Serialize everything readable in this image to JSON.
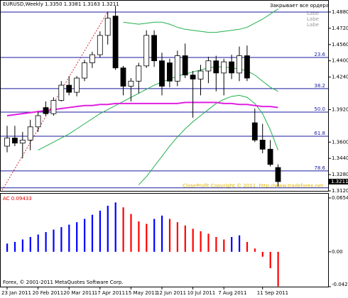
{
  "chart_data": [
    {
      "type": "candlestick",
      "title": "EURUSD,Weekly 1.3350 1.3381 1.3163 1.3211",
      "annotations": [
        "Закрывает все ордера",
        "Labe",
        "Labe",
        "Labe"
      ],
      "copyright": "CloseProfit Copyright © 2011, http://www.tradeforex.net",
      "categories": [
        "23 Jan 2011",
        null,
        null,
        null,
        "20 Feb 2011",
        null,
        null,
        null,
        "20 Mar 2011",
        null,
        null,
        null,
        "17 Apr 2011",
        null,
        null,
        null,
        "15 May 2011",
        null,
        null,
        null,
        "12 Jun 2011",
        null,
        null,
        null,
        "10 Jul 2011",
        null,
        null,
        null,
        "7 Aug 2011",
        null,
        null,
        null,
        null,
        "11 Sep 2011",
        null,
        null
      ],
      "open": [
        1.356,
        1.364,
        1.359,
        1.362,
        1.375,
        1.394,
        1.388,
        1.401,
        1.416,
        1.409,
        1.423,
        1.438,
        1.446,
        1.465,
        1.484,
        1.433,
        1.415,
        1.42,
        1.435,
        1.465,
        1.44,
        1.438,
        1.42,
        1.445,
        1.426,
        1.422,
        1.43,
        1.44,
        1.428,
        1.439,
        1.428,
        1.445,
        1.379,
        1.362,
        1.353,
        1.335
      ],
      "high": [
        1.376,
        1.376,
        1.37,
        1.382,
        1.39,
        1.4,
        1.404,
        1.42,
        1.425,
        1.425,
        1.441,
        1.449,
        1.469,
        1.488,
        1.494,
        1.435,
        1.423,
        1.438,
        1.47,
        1.47,
        1.448,
        1.442,
        1.45,
        1.457,
        1.43,
        1.436,
        1.444,
        1.445,
        1.442,
        1.446,
        1.454,
        1.455,
        1.393,
        1.378,
        1.362,
        1.3381
      ],
      "low": [
        1.35,
        1.356,
        1.344,
        1.352,
        1.37,
        1.386,
        1.386,
        1.4,
        1.406,
        1.405,
        1.42,
        1.433,
        1.443,
        1.456,
        1.431,
        1.406,
        1.4,
        1.408,
        1.433,
        1.434,
        1.406,
        1.414,
        1.415,
        1.423,
        1.384,
        1.406,
        1.418,
        1.41,
        1.406,
        1.422,
        1.42,
        1.42,
        1.36,
        1.349,
        1.336,
        1.3163
      ],
      "close": [
        1.364,
        1.359,
        1.362,
        1.375,
        1.386,
        1.388,
        1.401,
        1.416,
        1.409,
        1.423,
        1.438,
        1.446,
        1.465,
        1.482,
        1.433,
        1.415,
        1.42,
        1.435,
        1.465,
        1.44,
        1.415,
        1.42,
        1.445,
        1.426,
        1.422,
        1.43,
        1.44,
        1.428,
        1.439,
        1.428,
        1.445,
        1.423,
        1.362,
        1.353,
        1.338,
        1.3211
      ],
      "lines": [
        {
          "color": "#22b14c",
          "values": [
            null,
            null,
            null,
            null,
            null,
            null,
            null,
            null,
            null,
            null,
            null,
            null,
            null,
            null,
            null,
            1.478,
            1.477,
            1.476,
            1.477,
            1.478,
            1.478,
            1.476,
            1.473,
            1.471,
            1.47,
            1.469,
            1.468,
            1.468,
            1.469,
            1.47,
            1.471,
            1.473,
            1.477,
            1.481,
            1.486,
            1.491
          ]
        },
        {
          "color": "#22b14c",
          "values": [
            null,
            null,
            null,
            null,
            1.352,
            1.356,
            1.36,
            1.364,
            1.368,
            1.373,
            1.378,
            1.383,
            1.388,
            1.392,
            1.396,
            1.4,
            1.404,
            1.408,
            1.412,
            1.416,
            1.419,
            1.422,
            1.425,
            1.427,
            1.429,
            1.431,
            1.433,
            1.434,
            1.434,
            1.433,
            1.432,
            1.43,
            1.426,
            1.42,
            1.414,
            1.41
          ]
        },
        {
          "color": "#22b14c",
          "values": [
            null,
            null,
            null,
            null,
            null,
            null,
            null,
            null,
            null,
            null,
            null,
            null,
            null,
            null,
            null,
            null,
            null,
            1.318,
            1.326,
            1.336,
            1.346,
            1.356,
            1.365,
            1.373,
            1.38,
            1.386,
            1.392,
            1.398,
            1.402,
            1.405,
            1.406,
            1.404,
            1.398,
            1.388,
            1.372,
            1.352
          ]
        },
        {
          "color": "#e020e0",
          "values": [
            1.386,
            1.387,
            1.388,
            1.389,
            1.39,
            1.391,
            1.392,
            1.393,
            1.394,
            1.395,
            1.396,
            1.396,
            1.397,
            1.397,
            1.398,
            1.398,
            1.398,
            1.398,
            1.398,
            1.398,
            1.398,
            1.398,
            1.398,
            1.399,
            1.399,
            1.399,
            1.399,
            1.399,
            1.398,
            1.398,
            1.397,
            1.397,
            1.396,
            1.395,
            1.395,
            1.394
          ]
        }
      ],
      "levels": [
        {
          "value": 1.4433,
          "label": "23.6"
        },
        {
          "value": 1.4126,
          "label": "38.2"
        },
        {
          "value": 1.3895,
          "label": "50.0"
        },
        {
          "value": 1.3658,
          "label": "61.8"
        },
        {
          "value": 1.3316,
          "label": "78.6"
        }
      ],
      "hlines": [
        1.488,
        1.315
      ],
      "level_color": "#1a1aa0",
      "last": {
        "value": 1.3211,
        "label": "1.3211"
      },
      "ylim": [
        1.312,
        1.496
      ],
      "yticks": [
        {
          "value": 1.488,
          "label": "1.4880"
        },
        {
          "value": 1.472,
          "label": "1.4720"
        },
        {
          "value": 1.456,
          "label": "1.4560"
        },
        {
          "value": 1.44,
          "label": "1.4400"
        },
        {
          "value": 1.424,
          "label": "1.4240"
        },
        {
          "value": 1.392,
          "label": "1.3920"
        },
        {
          "value": 1.36,
          "label": "1.3600"
        },
        {
          "value": 1.344,
          "label": "1.3440"
        },
        {
          "value": 1.328,
          "label": "1.3280"
        },
        {
          "value": 1.312,
          "label": "1.3120"
        }
      ]
    },
    {
      "type": "bar",
      "title": "AC 0.09433",
      "values": [
        0.01,
        0.012,
        0.015,
        0.018,
        0.021,
        0.024,
        0.027,
        0.03,
        0.033,
        0.036,
        0.04,
        0.045,
        0.05,
        0.056,
        0.06,
        0.054,
        0.046,
        0.037,
        0.034,
        0.04,
        0.044,
        0.04,
        0.036,
        0.032,
        0.028,
        0.025,
        0.022,
        0.018,
        0.015,
        0.018,
        0.02,
        0.012,
        0.004,
        -0.006,
        -0.02,
        -0.042
      ],
      "colors": [
        "#0000ff",
        "#0000ff",
        "#0000ff",
        "#0000ff",
        "#0000ff",
        "#0000ff",
        "#0000ff",
        "#0000ff",
        "#0000ff",
        "#0000ff",
        "#0000ff",
        "#0000ff",
        "#0000ff",
        "#0000ff",
        "#0000ff",
        "#ff0000",
        "#ff0000",
        "#ff0000",
        "#ff0000",
        "#0000ff",
        "#0000ff",
        "#ff0000",
        "#ff0000",
        "#ff0000",
        "#ff0000",
        "#ff0000",
        "#ff0000",
        "#ff0000",
        "#ff0000",
        "#0000ff",
        "#0000ff",
        "#ff0000",
        "#ff0000",
        "#ff0000",
        "#ff0000",
        "#ff0000"
      ],
      "ylim": [
        -0.04237,
        0.06546
      ],
      "yticks": [
        0.06546,
        {
          "value": 0,
          "label": "0.00"
        },
        -0.04237
      ]
    }
  ],
  "footer": "Forex, © 2001-2011 MetaQuotes Software Corp."
}
